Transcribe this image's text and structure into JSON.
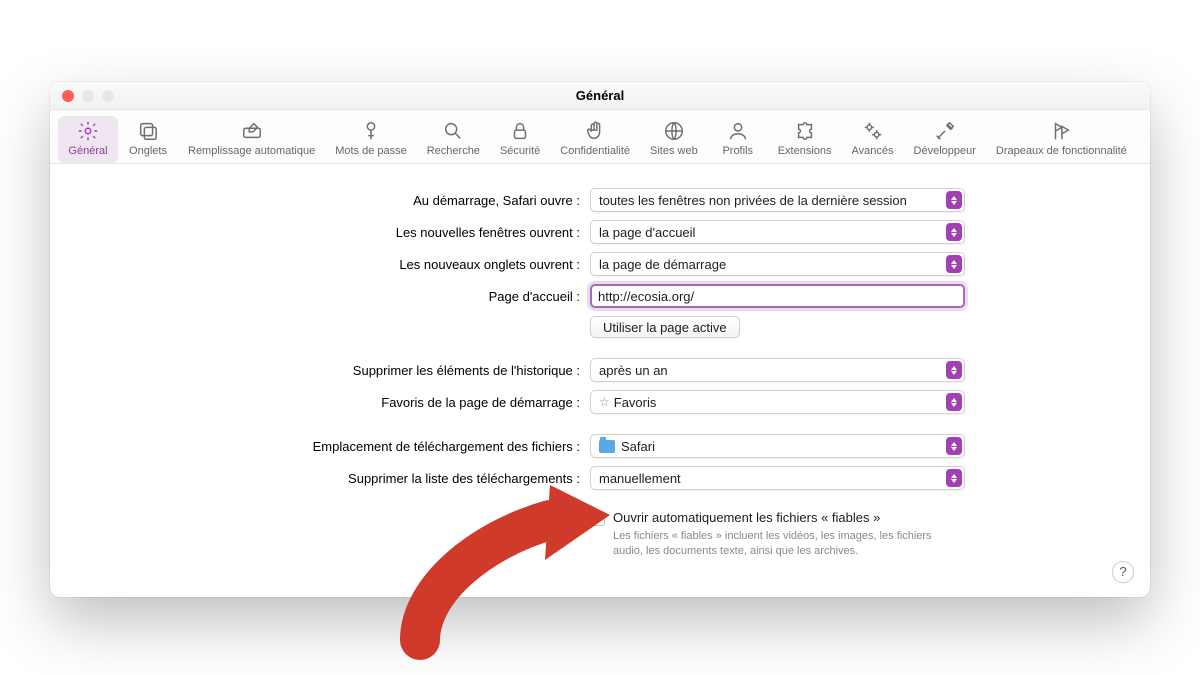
{
  "window": {
    "title": "Général"
  },
  "traffic_colors": {
    "close": "#ff5f57",
    "min": "#e6e6e6",
    "max": "#e6e6e6"
  },
  "accent_color": "#a23fb5",
  "arrow_color": "#d03a2b",
  "toolbar": {
    "selected_index": 0,
    "items": [
      {
        "label": "Général",
        "icon": "gear-icon"
      },
      {
        "label": "Onglets",
        "icon": "tabs-icon"
      },
      {
        "label": "Remplissage automatique",
        "icon": "pencil-box-icon"
      },
      {
        "label": "Mots de passe",
        "icon": "key-icon"
      },
      {
        "label": "Recherche",
        "icon": "search-icon"
      },
      {
        "label": "Sécurité",
        "icon": "lock-icon"
      },
      {
        "label": "Confidentialité",
        "icon": "hand-icon"
      },
      {
        "label": "Sites web",
        "icon": "globe-icon"
      },
      {
        "label": "Profils",
        "icon": "person-icon"
      },
      {
        "label": "Extensions",
        "icon": "puzzle-icon"
      },
      {
        "label": "Avancés",
        "icon": "gears-icon"
      },
      {
        "label": "Développeur",
        "icon": "tools-icon"
      },
      {
        "label": "Drapeaux de fonctionnalité",
        "icon": "flags-icon"
      }
    ]
  },
  "labels": {
    "startup": "Au démarrage, Safari ouvre :",
    "new_windows": "Les nouvelles fenêtres ouvrent :",
    "new_tabs": "Les nouveaux onglets ouvrent :",
    "homepage": "Page d'accueil :",
    "use_current": "Utiliser la page active",
    "history": "Supprimer les éléments de l'historique :",
    "favorites": "Favoris de la page de démarrage :",
    "download_loc": "Emplacement de téléchargement des fichiers :",
    "download_clear": "Supprimer la liste des téléchargements :",
    "safe_open": "Ouvrir automatiquement les fichiers « fiables »",
    "safe_hint": "Les fichiers « fiables » incluent les vidéos, les images, les fichiers audio, les documents texte, ainsi que les archives."
  },
  "values": {
    "startup": "toutes les fenêtres non privées de la dernière session",
    "new_windows": "la page d'accueil",
    "new_tabs": "la page de démarrage",
    "homepage": "http://ecosia.org/",
    "history": "après un an",
    "favorites": "Favoris",
    "download_loc": "Safari",
    "download_clear": "manuellement",
    "safe_open_checked": false
  },
  "help_button": "?"
}
